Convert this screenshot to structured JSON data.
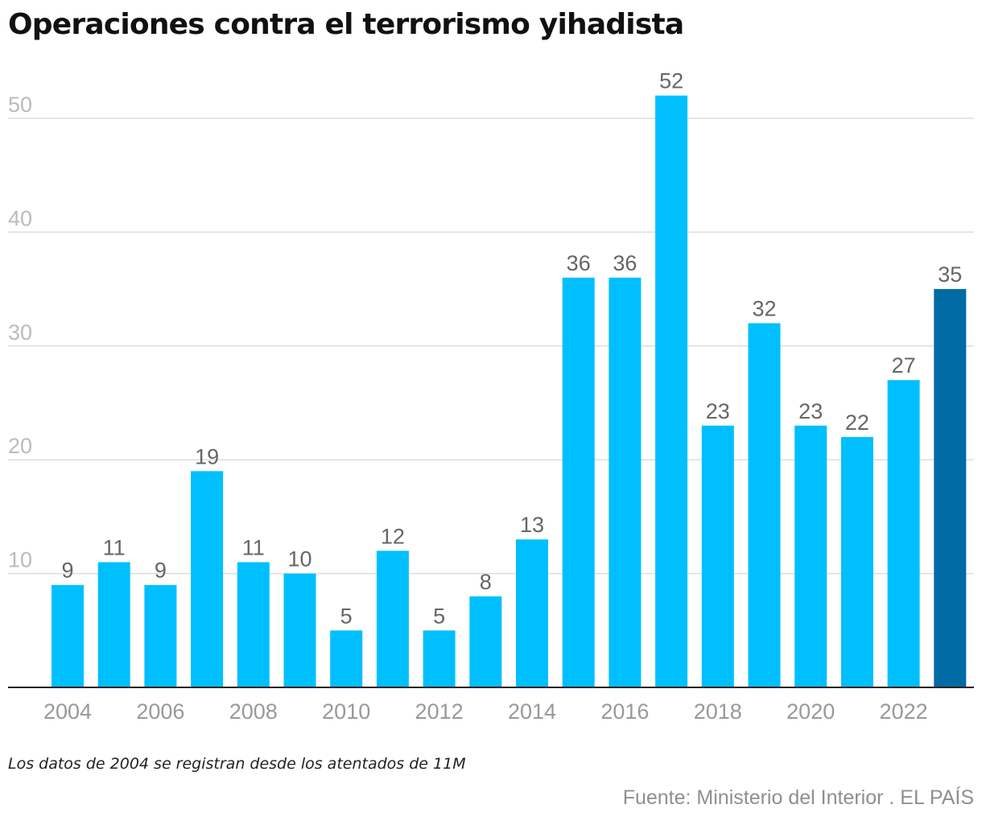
{
  "chart_data": {
    "type": "bar",
    "title": "Operaciones contra el terrorismo yihadista",
    "note": "Los datos de 2004 se registran desde los atentados de 11M",
    "source": "Fuente: Ministerio del Interior . EL PAÍS",
    "categories": [
      "2004",
      "2005",
      "2006",
      "2007",
      "2008",
      "2009",
      "2010",
      "2011",
      "2012",
      "2013",
      "2014",
      "2015",
      "2016",
      "2017",
      "2018",
      "2019",
      "2020",
      "2021",
      "2022",
      "2023"
    ],
    "values": [
      9,
      11,
      9,
      19,
      11,
      10,
      5,
      12,
      5,
      8,
      13,
      36,
      36,
      52,
      23,
      32,
      23,
      22,
      27,
      35
    ],
    "x_tick_labels": [
      "2004",
      "2006",
      "2008",
      "2010",
      "2012",
      "2014",
      "2016",
      "2018",
      "2020",
      "2022"
    ],
    "y_ticks": [
      10,
      20,
      30,
      40,
      50
    ],
    "ylim": [
      0,
      52
    ],
    "xlabel": "",
    "ylabel": "",
    "grid": true,
    "legend": "none",
    "colors": {
      "bar": "#00bfff",
      "highlight": "#006ba4",
      "grid": "#dddddd",
      "axis": "#222222",
      "tick_label": "#bbbbbb",
      "x_tick_label": "#999999",
      "value_label": "#666666"
    },
    "highlight_category": "2023"
  }
}
